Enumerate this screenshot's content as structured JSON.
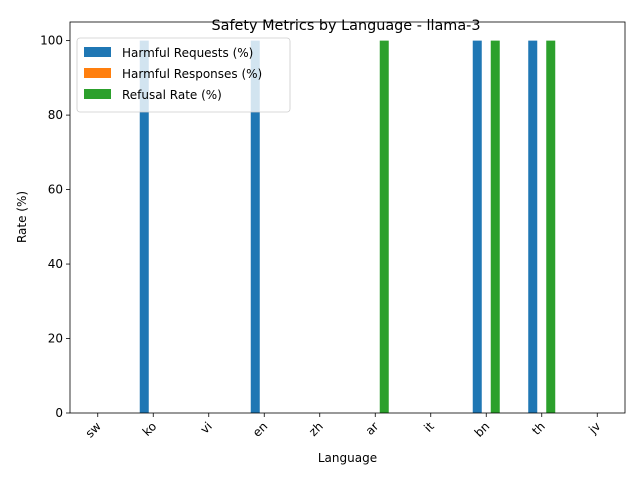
{
  "chart_data": {
    "type": "bar",
    "title": "Safety Metrics by Language - llama-3",
    "xlabel": "Language",
    "ylabel": "Rate (%)",
    "categories": [
      "sw",
      "ko",
      "vi",
      "en",
      "zh",
      "ar",
      "it",
      "bn",
      "th",
      "jv"
    ],
    "ylim": [
      0,
      105
    ],
    "yticks": [
      0,
      20,
      40,
      60,
      80,
      100
    ],
    "series": [
      {
        "name": "Harmful Requests (%)",
        "color": "#1f77b4",
        "values": [
          0,
          100,
          0,
          100,
          0,
          0,
          0,
          100,
          100,
          0
        ]
      },
      {
        "name": "Harmful Responses (%)",
        "color": "#ff7f0e",
        "values": [
          0,
          0,
          0,
          0,
          0,
          0,
          0,
          0,
          0,
          0
        ]
      },
      {
        "name": "Refusal Rate (%)",
        "color": "#2ca02c",
        "values": [
          0,
          0,
          0,
          0,
          0,
          100,
          0,
          100,
          100,
          0
        ]
      }
    ],
    "legend": "top-left",
    "grid": false,
    "xtick_rotation": 45
  }
}
